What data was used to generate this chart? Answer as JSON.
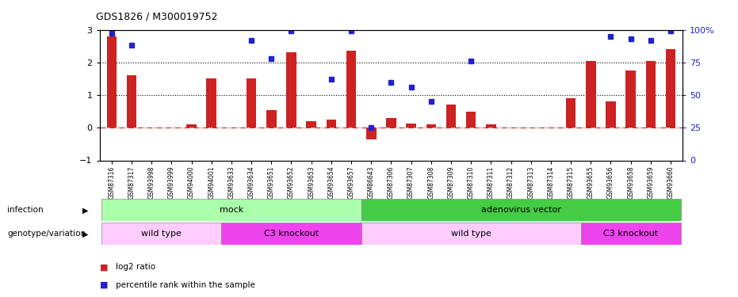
{
  "title": "GDS1826 / M300019752",
  "samples": [
    "GSM87316",
    "GSM87317",
    "GSM93998",
    "GSM93999",
    "GSM94000",
    "GSM94001",
    "GSM93633",
    "GSM93634",
    "GSM93651",
    "GSM93652",
    "GSM93653",
    "GSM93654",
    "GSM93657",
    "GSM86643",
    "GSM87306",
    "GSM87307",
    "GSM87308",
    "GSM87309",
    "GSM87310",
    "GSM87311",
    "GSM87312",
    "GSM87313",
    "GSM87314",
    "GSM87315",
    "GSM93655",
    "GSM93656",
    "GSM93658",
    "GSM93659",
    "GSM93660"
  ],
  "log2_ratio": [
    2.8,
    1.6,
    0.0,
    0.0,
    0.1,
    1.5,
    0.0,
    1.5,
    0.55,
    2.3,
    0.2,
    0.25,
    2.35,
    -0.35,
    0.3,
    0.12,
    0.1,
    0.7,
    0.5,
    0.1,
    0.0,
    0.0,
    0.0,
    0.9,
    2.05,
    0.8,
    1.75,
    2.05,
    2.4
  ],
  "percentile_rank_pct": [
    97,
    88,
    null,
    null,
    null,
    null,
    null,
    92,
    78,
    99,
    null,
    62,
    99,
    25,
    60,
    56,
    45,
    null,
    76,
    null,
    null,
    null,
    null,
    null,
    null,
    95,
    93,
    92,
    99
  ],
  "infection_groups": [
    {
      "label": "mock",
      "start": 0,
      "end": 12,
      "color": "#aaffaa"
    },
    {
      "label": "adenovirus vector",
      "start": 13,
      "end": 28,
      "color": "#44cc44"
    }
  ],
  "genotype_groups": [
    {
      "label": "wild type",
      "start": 0,
      "end": 5,
      "color": "#ffccff"
    },
    {
      "label": "C3 knockout",
      "start": 6,
      "end": 12,
      "color": "#ee44ee"
    },
    {
      "label": "wild type",
      "start": 13,
      "end": 23,
      "color": "#ffccff"
    },
    {
      "label": "C3 knockout",
      "start": 24,
      "end": 28,
      "color": "#ee44ee"
    }
  ],
  "ylim_left": [
    -1,
    3
  ],
  "ylim_right": [
    0,
    100
  ],
  "bar_color": "#cc2222",
  "dot_color": "#2222cc",
  "bar_width": 0.5
}
